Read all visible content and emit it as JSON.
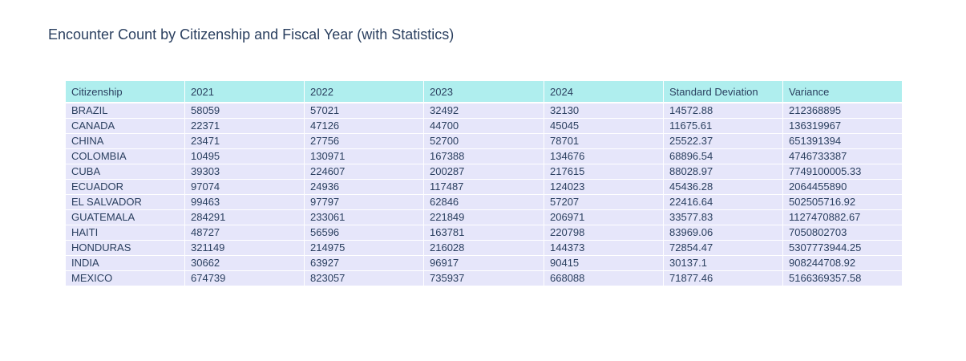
{
  "chart_data": {
    "type": "table",
    "title": "Encounter Count by Citizenship and Fiscal Year (with Statistics)",
    "columns": [
      "Citizenship",
      "2021",
      "2022",
      "2023",
      "2024",
      "Standard Deviation",
      "Variance"
    ],
    "rows": [
      [
        "BRAZIL",
        "58059",
        "57021",
        "32492",
        "32130",
        "14572.88",
        "212368895"
      ],
      [
        "CANADA",
        "22371",
        "47126",
        "44700",
        "45045",
        "11675.61",
        "136319967"
      ],
      [
        "CHINA",
        "23471",
        "27756",
        "52700",
        "78701",
        "25522.37",
        "651391394"
      ],
      [
        "COLOMBIA",
        "10495",
        "130971",
        "167388",
        "134676",
        "68896.54",
        "4746733387"
      ],
      [
        "CUBA",
        "39303",
        "224607",
        "200287",
        "217615",
        "88028.97",
        "7749100005.33"
      ],
      [
        "ECUADOR",
        "97074",
        "24936",
        "117487",
        "124023",
        "45436.28",
        "2064455890"
      ],
      [
        "EL SALVADOR",
        "99463",
        "97797",
        "62846",
        "57207",
        "22416.64",
        "502505716.92"
      ],
      [
        "GUATEMALA",
        "284291",
        "233061",
        "221849",
        "206971",
        "33577.83",
        "1127470882.67"
      ],
      [
        "HAITI",
        "48727",
        "56596",
        "163781",
        "220798",
        "83969.06",
        "7050802703"
      ],
      [
        "HONDURAS",
        "321149",
        "214975",
        "216028",
        "144373",
        "72854.47",
        "5307773944.25"
      ],
      [
        "INDIA",
        "30662",
        "63927",
        "96917",
        "90415",
        "30137.1",
        "908244708.92"
      ],
      [
        "MEXICO",
        "674739",
        "823057",
        "735937",
        "668088",
        "71877.46",
        "5166369357.58"
      ]
    ],
    "colors": {
      "header_fill": "#afeeee",
      "cell_fill": "#e6e6fa",
      "text": "#2a3f5f"
    }
  }
}
